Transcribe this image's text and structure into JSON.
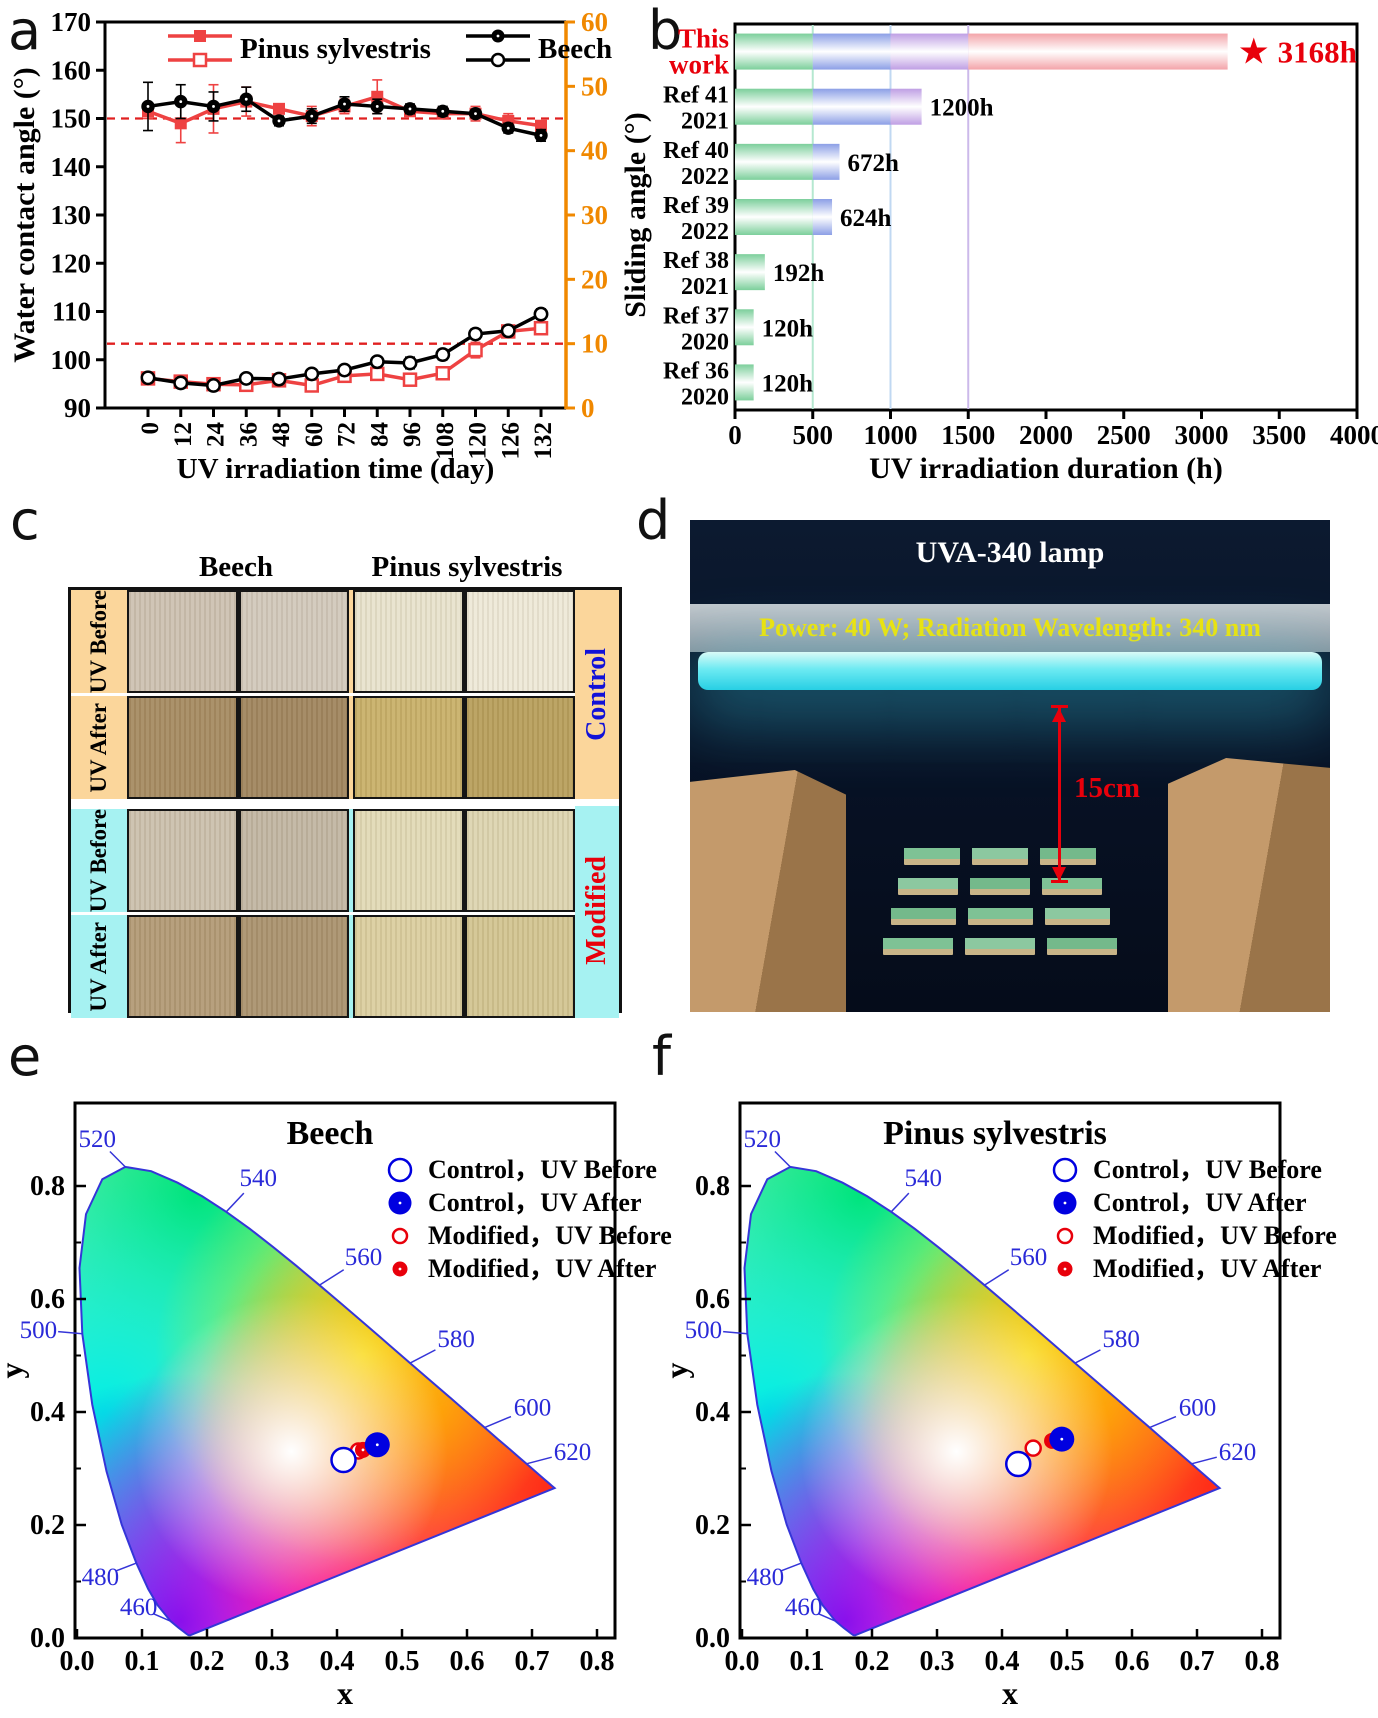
{
  "chart_data": [
    {
      "id": "a",
      "panel_label": "a",
      "type": "line",
      "x": {
        "title": "UV irradiation time (day)",
        "categories": [
          "0",
          "12",
          "24",
          "36",
          "48",
          "60",
          "72",
          "84",
          "96",
          "108",
          "120",
          "126",
          "132"
        ]
      },
      "y_left": {
        "title": "Water contact angle (°)",
        "min": 90,
        "max": 170,
        "tick_labels": [
          "90",
          "100",
          "110",
          "120",
          "130",
          "140",
          "150",
          "160",
          "170"
        ]
      },
      "y_right": {
        "title": "Sliding angle (°)",
        "min": 0,
        "max": 60,
        "tick_labels": [
          "0",
          "10",
          "20",
          "30",
          "40",
          "50",
          "60"
        ],
        "axis_color": "#f08800"
      },
      "legend": [
        {
          "label": "Pinus sylvestris",
          "color": "#ee4242"
        },
        {
          "label": "Beech",
          "color": "#000000"
        }
      ],
      "ref_lines": [
        {
          "axis": "left",
          "value": 150,
          "color": "#e02020",
          "style": "dashed"
        },
        {
          "axis": "right",
          "value": 10,
          "color": "#e02020",
          "style": "dashed"
        }
      ],
      "series": [
        {
          "name": "Pinus sylvestris - water contact angle",
          "axis": "left",
          "color": "#ee4242",
          "marker": "filled-square",
          "values": [
            151.5,
            149,
            152,
            153.5,
            152,
            150.5,
            152.5,
            154.5,
            151.5,
            151,
            151,
            149.5,
            148.5
          ],
          "errors": [
            1.5,
            4,
            5,
            3,
            1,
            2,
            1.5,
            3.5,
            1,
            1,
            1.5,
            1.5,
            1
          ]
        },
        {
          "name": "Beech - water contact angle",
          "axis": "left",
          "color": "#000000",
          "marker": "filled-circle",
          "values": [
            152.5,
            153.5,
            152.5,
            154,
            149.5,
            150.5,
            153,
            152.5,
            152,
            151.5,
            151,
            148,
            146.5
          ],
          "errors": [
            5,
            3.5,
            3,
            2.5,
            1,
            1.5,
            1.5,
            1.5,
            1,
            1,
            0.8,
            1,
            1.2
          ]
        },
        {
          "name": "Pinus sylvestris - sliding angle",
          "axis": "right",
          "color": "#ee4242",
          "marker": "open-square",
          "values": [
            4.6,
            4.1,
            3.7,
            3.6,
            4.3,
            3.5,
            5.0,
            5.3,
            4.4,
            5.4,
            9.0,
            11.9,
            12.4
          ],
          "errors": [
            0.6,
            0.5,
            0.5,
            0.5,
            0.8,
            0.8,
            0.8,
            0.6,
            0.6,
            1.0,
            1.2,
            0.6,
            0.6
          ]
        },
        {
          "name": "Beech - sliding angle",
          "axis": "right",
          "color": "#000000",
          "marker": "open-circle",
          "values": [
            4.7,
            3.9,
            3.5,
            4.6,
            4.5,
            5.3,
            5.9,
            7.2,
            7.0,
            8.3,
            11.5,
            12.0,
            14.6
          ],
          "errors": [
            0.6,
            0.5,
            0.4,
            0.6,
            0.6,
            0.6,
            0.7,
            0.7,
            0.9,
            0.8,
            0.8,
            0.5,
            0.8
          ]
        }
      ]
    },
    {
      "id": "b",
      "panel_label": "b",
      "type": "bar",
      "x": {
        "title": "UV irradiation duration (h)",
        "min": 0,
        "max": 4000,
        "tick_labels": [
          "0",
          "500",
          "1000",
          "1500",
          "2000",
          "2500",
          "3000",
          "3500",
          "4000"
        ]
      },
      "categories": [
        [
          "This",
          "work"
        ],
        [
          "Ref 41",
          "2021"
        ],
        [
          "Ref 40",
          "2022"
        ],
        [
          "Ref 39",
          "2022"
        ],
        [
          "Ref 38",
          "2021"
        ],
        [
          "Ref 37",
          "2020"
        ],
        [
          "Ref 36",
          "2020"
        ]
      ],
      "category_colors": [
        "#e8000b",
        "#000000",
        "#000000",
        "#000000",
        "#000000",
        "#000000",
        "#000000"
      ],
      "values": [
        3168,
        1200,
        672,
        624,
        192,
        120,
        120
      ],
      "value_labels": [
        "3168h",
        "1200h",
        "672h",
        "624h",
        "192h",
        "120h",
        "120h"
      ],
      "highlight_index": 0,
      "highlight_color": "#e8000b",
      "star_icon": "★",
      "segments": {
        "thresholds": [
          500,
          1000,
          1500,
          4000
        ],
        "colors": [
          "#7ccf9b",
          "#8c9fe6",
          "#bf9fe4",
          "#f3a4a9"
        ]
      },
      "gridlines": [
        {
          "x": 500,
          "color": "#b5e8d0"
        },
        {
          "x": 1000,
          "color": "#c0d8f2"
        },
        {
          "x": 1500,
          "color": "#ccb9ea"
        }
      ]
    },
    {
      "id": "e",
      "panel_label": "e",
      "type": "scatter",
      "subtype": "cie-chromaticity",
      "title": "Beech",
      "x": {
        "title": "x",
        "min": 0,
        "max": 0.8,
        "tick_labels": [
          "0.0",
          "0.1",
          "0.2",
          "0.3",
          "0.4",
          "0.5",
          "0.6",
          "0.7",
          "0.8"
        ]
      },
      "y": {
        "title": "y",
        "min": 0,
        "max": 0.86,
        "tick_labels": [
          "0.0",
          "0.2",
          "0.4",
          "0.6",
          "0.8"
        ]
      },
      "wavelength_labels": [
        "460",
        "480",
        "500",
        "520",
        "540",
        "560",
        "580",
        "600",
        "620"
      ],
      "legend": [
        {
          "label": "Control，UV Before",
          "marker": "open-circle",
          "color": "#0000e0"
        },
        {
          "label": "Control，UV After",
          "marker": "filled-circle",
          "color": "#0000e0"
        },
        {
          "label": "Modified，UV Before",
          "marker": "open-circle",
          "color": "#e8000b"
        },
        {
          "label": "Modified，UV After",
          "marker": "filled-circle",
          "color": "#e8000b"
        }
      ],
      "points": [
        {
          "series": "Modified，UV Before",
          "x": 0.433,
          "y": 0.331
        },
        {
          "series": "Control，UV Before",
          "x": 0.41,
          "y": 0.315
        },
        {
          "series": "Modified，UV After",
          "x": 0.44,
          "y": 0.333
        },
        {
          "series": "Control，UV After",
          "x": 0.462,
          "y": 0.342
        }
      ]
    },
    {
      "id": "f",
      "panel_label": "f",
      "type": "scatter",
      "subtype": "cie-chromaticity",
      "title": "Pinus sylvestris",
      "x": {
        "title": "x",
        "min": 0,
        "max": 0.8,
        "tick_labels": [
          "0.0",
          "0.1",
          "0.2",
          "0.3",
          "0.4",
          "0.5",
          "0.6",
          "0.7",
          "0.8"
        ]
      },
      "y": {
        "title": "y",
        "min": 0,
        "max": 0.86,
        "tick_labels": [
          "0.0",
          "0.2",
          "0.4",
          "0.6",
          "0.8"
        ]
      },
      "wavelength_labels": [
        "460",
        "480",
        "500",
        "520",
        "540",
        "560",
        "580",
        "600",
        "620"
      ],
      "legend": [
        {
          "label": "Control，UV Before",
          "marker": "open-circle",
          "color": "#0000e0"
        },
        {
          "label": "Control，UV After",
          "marker": "filled-circle",
          "color": "#0000e0"
        },
        {
          "label": "Modified，UV Before",
          "marker": "open-circle",
          "color": "#e8000b"
        },
        {
          "label": "Modified，UV After",
          "marker": "filled-circle",
          "color": "#e8000b"
        }
      ],
      "points": [
        {
          "series": "Control，UV Before",
          "x": 0.425,
          "y": 0.308
        },
        {
          "series": "Modified，UV Before",
          "x": 0.448,
          "y": 0.336
        },
        {
          "series": "Modified，UV After",
          "x": 0.477,
          "y": 0.349
        },
        {
          "series": "Control，UV After",
          "x": 0.492,
          "y": 0.352
        }
      ]
    }
  ],
  "panels": {
    "c": {
      "panel_label": "c",
      "col_headers": [
        "Beech",
        "Pinus sylvestris"
      ],
      "groups": [
        {
          "label": "Control",
          "label_color": "#1212d8",
          "bg": "#fbd69b",
          "rows": [
            {
              "row_label": "UV Before",
              "beech": [
                "#cdc2b2",
                "#d2c9bc"
              ],
              "pinus": [
                "#e8e3cd",
                "#eee9d8"
              ]
            },
            {
              "row_label": "UV After",
              "beech": [
                "#a78c63",
                "#a18760"
              ],
              "pinus": [
                "#c9b16b",
                "#b9a05e"
              ]
            }
          ]
        },
        {
          "label": "Modified",
          "label_color": "#e8000b",
          "bg": "#a6f2f2",
          "rows": [
            {
              "row_label": "UV Before",
              "beech": [
                "#ccc1ae",
                "#c2b6a3"
              ],
              "pinus": [
                "#e2dab6",
                "#ddd5b1"
              ]
            },
            {
              "row_label": "UV After",
              "beech": [
                "#b39b77",
                "#ab9470"
              ],
              "pinus": [
                "#dbcfa0",
                "#d3c592"
              ]
            }
          ]
        }
      ]
    },
    "d": {
      "panel_label": "d",
      "title": "UVA-340 lamp",
      "lamp_text": "Power: 40 W; Radiation Wavelength: 340 nm",
      "distance_label": "15cm",
      "sample_colors": [
        "#7ec295",
        "#8cc8a0",
        "#74b98b"
      ],
      "sample_edge_color": "#c8b488"
    }
  }
}
